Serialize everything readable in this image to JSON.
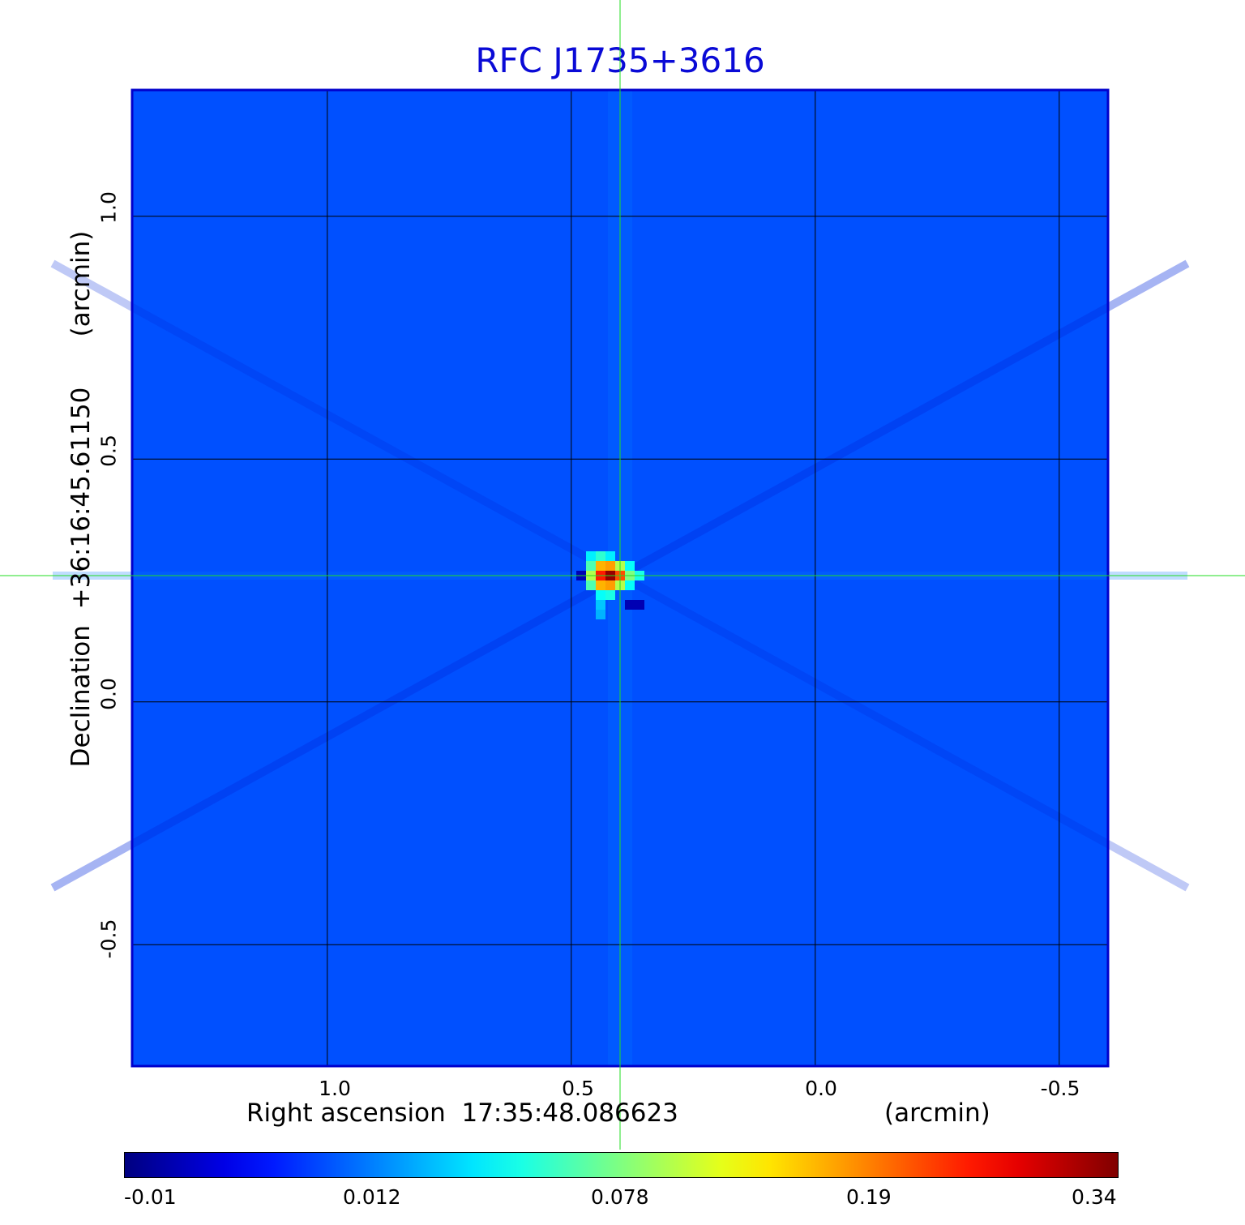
{
  "chart_data": {
    "type": "heatmap",
    "title": "RFC J1735+3616",
    "xlabel": "Right ascension  17:35:48.086623",
    "xunit": "(arcmin)",
    "ylabel": "Declination  +36:16:45.61150",
    "yunit": "(arcmin)",
    "x_ticks": [
      "1.0",
      "0.5",
      "0.0",
      "-0.5"
    ],
    "y_ticks": [
      "1.0",
      "0.5",
      "0.0",
      "-0.5"
    ],
    "xlim": [
      1.4,
      -0.6
    ],
    "ylim": [
      -0.75,
      1.26
    ],
    "grid": true,
    "crosshair": {
      "x": 0.4,
      "y": 0.26
    },
    "peak": {
      "x": 0.4,
      "y": 0.26,
      "value": 0.34
    },
    "background_value": 0.0,
    "colorbar": {
      "ticks": [
        "-0.01",
        "0.012",
        "0.078",
        "0.19",
        "0.34"
      ],
      "colormap": "jet"
    },
    "colors": {
      "title": "#0a0ad6",
      "frame": "#0000cc",
      "grid": "#000000",
      "crosshair": "#22dd22",
      "background": "#0050ff"
    }
  }
}
